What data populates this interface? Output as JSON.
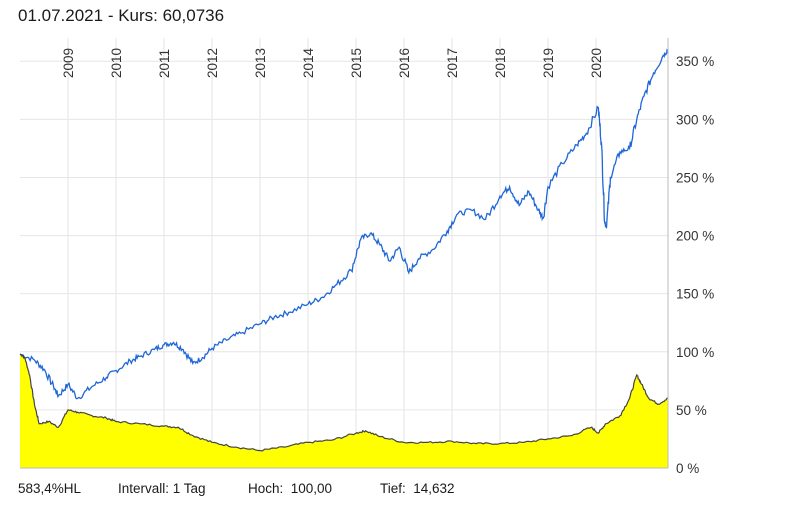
{
  "header": {
    "date": "01.07.2021",
    "price_label": " - Kurs: 60,0736"
  },
  "footer": {
    "hl": "583,4%HL",
    "interval": "Intervall: 1 Tag",
    "high": "Hoch:  100,00",
    "low": "Tief:  14,632"
  },
  "colors": {
    "blue_line": "#1f66d6",
    "yellow_fill": "#ffff00",
    "gray_line": "#444444",
    "grid": "#e6e6e6"
  },
  "chart_data": {
    "type": "line",
    "ylim": [
      0,
      370
    ],
    "xlim": [
      2008.0,
      2021.5
    ],
    "x_tick_labels": [
      "2009",
      "2010",
      "2011",
      "2012",
      "2013",
      "2014",
      "2015",
      "2016",
      "2017",
      "2018",
      "2019",
      "2020"
    ],
    "x_tick_positions": [
      2009,
      2010,
      2011,
      2012,
      2013,
      2014,
      2015,
      2016,
      2017,
      2018,
      2019,
      2020
    ],
    "y_tick_labels": [
      "350 %",
      "300 %",
      "250 %",
      "200 %",
      "150 %",
      "100 %",
      "50 %",
      "0 %"
    ],
    "y_tick_values": [
      350,
      300,
      250,
      200,
      150,
      100,
      50,
      0
    ],
    "grid": true,
    "series": [
      {
        "color": "#1f66d6",
        "fill": false,
        "points": [
          [
            2008.0,
            98
          ],
          [
            2008.3,
            93
          ],
          [
            2008.5,
            85
          ],
          [
            2008.7,
            70
          ],
          [
            2008.8,
            62
          ],
          [
            2009.0,
            72
          ],
          [
            2009.2,
            60
          ],
          [
            2009.5,
            70
          ],
          [
            2009.8,
            78
          ],
          [
            2010.0,
            84
          ],
          [
            2010.3,
            92
          ],
          [
            2010.5,
            96
          ],
          [
            2010.8,
            102
          ],
          [
            2011.0,
            106
          ],
          [
            2011.2,
            108
          ],
          [
            2011.4,
            102
          ],
          [
            2011.6,
            90
          ],
          [
            2011.8,
            95
          ],
          [
            2012.0,
            103
          ],
          [
            2012.3,
            110
          ],
          [
            2012.6,
            116
          ],
          [
            2013.0,
            124
          ],
          [
            2013.3,
            130
          ],
          [
            2013.6,
            134
          ],
          [
            2014.0,
            141
          ],
          [
            2014.3,
            147
          ],
          [
            2014.6,
            158
          ],
          [
            2014.9,
            170
          ],
          [
            2015.1,
            197
          ],
          [
            2015.3,
            202
          ],
          [
            2015.5,
            192
          ],
          [
            2015.7,
            178
          ],
          [
            2015.9,
            190
          ],
          [
            2016.1,
            168
          ],
          [
            2016.3,
            180
          ],
          [
            2016.6,
            188
          ],
          [
            2016.9,
            204
          ],
          [
            2017.1,
            218
          ],
          [
            2017.4,
            222
          ],
          [
            2017.7,
            214
          ],
          [
            2018.0,
            234
          ],
          [
            2018.2,
            242
          ],
          [
            2018.4,
            226
          ],
          [
            2018.6,
            238
          ],
          [
            2018.8,
            222
          ],
          [
            2018.9,
            215
          ],
          [
            2019.0,
            242
          ],
          [
            2019.3,
            262
          ],
          [
            2019.6,
            278
          ],
          [
            2019.8,
            288
          ],
          [
            2020.05,
            310
          ],
          [
            2020.12,
            275
          ],
          [
            2020.18,
            212
          ],
          [
            2020.22,
            208
          ],
          [
            2020.3,
            250
          ],
          [
            2020.5,
            272
          ],
          [
            2020.7,
            275
          ],
          [
            2020.85,
            300
          ],
          [
            2021.0,
            320
          ],
          [
            2021.2,
            340
          ],
          [
            2021.4,
            355
          ],
          [
            2021.5,
            360
          ]
        ]
      },
      {
        "color": "#444444",
        "fill": true,
        "fill_color": "#ffff00",
        "points": [
          [
            2008.0,
            98
          ],
          [
            2008.1,
            95
          ],
          [
            2008.2,
            80
          ],
          [
            2008.3,
            55
          ],
          [
            2008.4,
            38
          ],
          [
            2008.6,
            40
          ],
          [
            2008.8,
            35
          ],
          [
            2009.0,
            50
          ],
          [
            2009.2,
            48
          ],
          [
            2009.5,
            45
          ],
          [
            2009.8,
            43
          ],
          [
            2010.0,
            40
          ],
          [
            2010.5,
            38
          ],
          [
            2011.0,
            36
          ],
          [
            2011.3,
            35
          ],
          [
            2011.6,
            28
          ],
          [
            2012.0,
            22
          ],
          [
            2012.5,
            18
          ],
          [
            2013.0,
            15
          ],
          [
            2013.5,
            18
          ],
          [
            2014.0,
            22
          ],
          [
            2014.5,
            24
          ],
          [
            2015.0,
            30
          ],
          [
            2015.2,
            32
          ],
          [
            2015.5,
            27
          ],
          [
            2016.0,
            22
          ],
          [
            2016.5,
            22
          ],
          [
            2017.0,
            23
          ],
          [
            2017.5,
            21
          ],
          [
            2018.0,
            21
          ],
          [
            2018.5,
            22
          ],
          [
            2019.0,
            25
          ],
          [
            2019.5,
            28
          ],
          [
            2019.9,
            35
          ],
          [
            2020.05,
            30
          ],
          [
            2020.2,
            38
          ],
          [
            2020.5,
            45
          ],
          [
            2020.7,
            60
          ],
          [
            2020.85,
            80
          ],
          [
            2020.95,
            72
          ],
          [
            2021.1,
            60
          ],
          [
            2021.3,
            55
          ],
          [
            2021.5,
            60
          ]
        ]
      }
    ]
  }
}
